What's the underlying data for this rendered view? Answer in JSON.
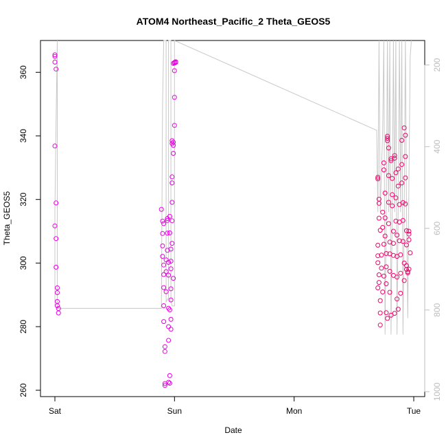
{
  "chart_data": {
    "type": "scatter",
    "title": "ATOM4 Northeast_Pacific_2 Theta_GEOS5",
    "xlabel": "Date",
    "ylabel": "Theta_GEOS5",
    "x_ticks": [
      "Sat",
      "Sun",
      "Mon",
      "Tue"
    ],
    "x_range": [
      0,
      3.06
    ],
    "y_ticks": [
      "260",
      "280",
      "300",
      "320",
      "340",
      "360"
    ],
    "y_range": [
      258,
      370
    ],
    "y2_ticks": [
      "200",
      "400",
      "600",
      "800",
      "1000"
    ],
    "y2_range": [
      1012,
      140
    ],
    "y2_reversed": true,
    "grid": false,
    "colors": {
      "points_early": "#e800e0",
      "points_late": "#f0006a",
      "line": "#c8c8c8",
      "axis": "#000000",
      "right_axis": "#bdbdbd"
    },
    "series": [
      {
        "type": "scatter",
        "values": [
          [
            0.0,
            365.5
          ],
          [
            0.0,
            365.0
          ],
          [
            0.0,
            363.2
          ],
          [
            0.01,
            361.0
          ],
          [
            0.0,
            336.8
          ],
          [
            0.01,
            318.9
          ],
          [
            0.0,
            311.7
          ],
          [
            0.01,
            307.7
          ],
          [
            0.01,
            298.7
          ],
          [
            0.02,
            292.2
          ],
          [
            0.02,
            290.7
          ],
          [
            0.02,
            287.9
          ],
          [
            0.02,
            286.6
          ],
          [
            0.03,
            285.7
          ],
          [
            0.03,
            284.3
          ],
          [
            0.89,
            316.9
          ],
          [
            0.9,
            313.2
          ],
          [
            0.91,
            312.4
          ],
          [
            0.9,
            309.3
          ],
          [
            0.9,
            305.4
          ],
          [
            0.9,
            302.1
          ],
          [
            0.91,
            299.4
          ],
          [
            0.91,
            296.4
          ],
          [
            0.91,
            292.3
          ],
          [
            0.91,
            286.6
          ],
          [
            0.91,
            281.6
          ],
          [
            0.92,
            273.7
          ],
          [
            0.92,
            272.2
          ],
          [
            0.92,
            262.1
          ],
          [
            0.92,
            261.5
          ],
          [
            0.93,
            301.0
          ],
          [
            0.93,
            297.3
          ],
          [
            0.93,
            291.0
          ],
          [
            0.94,
            314.0
          ],
          [
            0.94,
            313.4
          ],
          [
            0.94,
            309.4
          ],
          [
            0.94,
            304.0
          ],
          [
            0.95,
            300.2
          ],
          [
            0.95,
            296.2
          ],
          [
            0.95,
            285.8
          ],
          [
            0.95,
            280.0
          ],
          [
            0.95,
            275.7
          ],
          [
            0.96,
            285.3
          ],
          [
            0.95,
            262.5
          ],
          [
            0.96,
            264.6
          ],
          [
            0.96,
            262.2
          ],
          [
            0.96,
            314.7
          ],
          [
            0.96,
            309.5
          ],
          [
            0.97,
            304.4
          ],
          [
            0.97,
            300.6
          ],
          [
            0.97,
            298.2
          ],
          [
            0.97,
            291.9
          ],
          [
            0.97,
            288.4
          ],
          [
            0.97,
            282.3
          ],
          [
            0.97,
            279.2
          ],
          [
            0.98,
            327.1
          ],
          [
            0.98,
            325.2
          ],
          [
            0.98,
            319.1
          ],
          [
            0.98,
            313.3
          ],
          [
            0.98,
            306.2
          ],
          [
            0.99,
            295.2
          ],
          [
            0.98,
            338.5
          ],
          [
            0.98,
            337.6
          ],
          [
            0.99,
            337.0
          ],
          [
            0.99,
            338.0
          ],
          [
            0.99,
            334.5
          ],
          [
            1.0,
            343.3
          ],
          [
            1.0,
            352.1
          ],
          [
            1.0,
            360.5
          ],
          [
            0.99,
            362.8
          ],
          [
            1.0,
            362.9
          ],
          [
            1.0,
            363.1
          ],
          [
            1.01,
            363.1
          ],
          [
            1.01,
            363.3
          ]
        ]
      },
      {
        "type": "scatter",
        "values": [
          [
            2.7,
            327.0
          ],
          [
            2.7,
            326.5
          ],
          [
            2.71,
            320.1
          ],
          [
            2.71,
            318.8
          ],
          [
            2.71,
            314.1
          ],
          [
            2.72,
            310.3
          ],
          [
            2.7,
            305.6
          ],
          [
            2.7,
            302.3
          ],
          [
            2.7,
            300.1
          ],
          [
            2.71,
            296.3
          ],
          [
            2.71,
            293.9
          ],
          [
            2.7,
            292.2
          ],
          [
            2.72,
            288.2
          ],
          [
            2.72,
            284.3
          ],
          [
            2.72,
            280.5
          ],
          [
            2.73,
            302.5
          ],
          [
            2.73,
            298.4
          ],
          [
            2.74,
            290.9
          ],
          [
            2.74,
            311.2
          ],
          [
            2.74,
            316.0
          ],
          [
            2.75,
            305.9
          ],
          [
            2.75,
            295.9
          ],
          [
            2.75,
            331.5
          ],
          [
            2.75,
            329.3
          ],
          [
            2.76,
            322.0
          ],
          [
            2.76,
            314.2
          ],
          [
            2.76,
            308.5
          ],
          [
            2.77,
            303.0
          ],
          [
            2.77,
            298.8
          ],
          [
            2.77,
            293.5
          ],
          [
            2.77,
            284.4
          ],
          [
            2.78,
            282.6
          ],
          [
            2.78,
            339.9
          ],
          [
            2.78,
            339.2
          ],
          [
            2.78,
            338.5
          ],
          [
            2.79,
            336.2
          ],
          [
            2.79,
            327.5
          ],
          [
            2.79,
            319.1
          ],
          [
            2.79,
            312.4
          ],
          [
            2.8,
            306.6
          ],
          [
            2.8,
            302.9
          ],
          [
            2.8,
            297.4
          ],
          [
            2.8,
            290.8
          ],
          [
            2.81,
            283.6
          ],
          [
            2.81,
            332.8
          ],
          [
            2.81,
            332.2
          ],
          [
            2.82,
            326.6
          ],
          [
            2.82,
            321.5
          ],
          [
            2.82,
            318.0
          ],
          [
            2.83,
            310.0
          ],
          [
            2.83,
            306.2
          ],
          [
            2.83,
            302.4
          ],
          [
            2.83,
            296.1
          ],
          [
            2.84,
            284.2
          ],
          [
            2.84,
            333.8
          ],
          [
            2.84,
            333.0
          ],
          [
            2.85,
            328.4
          ],
          [
            2.85,
            320.5
          ],
          [
            2.85,
            313.2
          ],
          [
            2.86,
            308.8
          ],
          [
            2.86,
            302.1
          ],
          [
            2.86,
            295.6
          ],
          [
            2.86,
            288.7
          ],
          [
            2.87,
            285.5
          ],
          [
            2.87,
            329.6
          ],
          [
            2.87,
            324.2
          ],
          [
            2.88,
            318.4
          ],
          [
            2.88,
            312.9
          ],
          [
            2.88,
            307.0
          ],
          [
            2.89,
            302.6
          ],
          [
            2.89,
            296.8
          ],
          [
            2.89,
            290.5
          ],
          [
            2.9,
            338.6
          ],
          [
            2.9,
            331.0
          ],
          [
            2.9,
            325.2
          ],
          [
            2.91,
            319.0
          ],
          [
            2.91,
            313.4
          ],
          [
            2.91,
            306.8
          ],
          [
            2.92,
            300.0
          ],
          [
            2.92,
            294.5
          ],
          [
            2.92,
            342.5
          ],
          [
            2.93,
            340.2
          ],
          [
            2.93,
            333.5
          ],
          [
            2.93,
            326.8
          ],
          [
            2.93,
            318.6
          ],
          [
            2.94,
            310.2
          ],
          [
            2.94,
            305.7
          ],
          [
            2.94,
            299.2
          ],
          [
            2.94,
            298.0
          ],
          [
            2.95,
            297.3
          ],
          [
            2.95,
            296.9
          ],
          [
            2.96,
            310.0
          ],
          [
            2.96,
            309.1
          ],
          [
            2.96,
            307.3
          ],
          [
            2.96,
            298.1
          ],
          [
            2.97,
            303.2
          ]
        ]
      }
    ],
    "profile_line": {
      "type": "line",
      "axis": "y2",
      "values": [
        [
          0.0,
          790
        ],
        [
          0.0,
          560
        ],
        [
          0.01,
          340
        ],
        [
          0.02,
          140
        ],
        [
          0.02,
          796
        ],
        [
          0.89,
          796
        ],
        [
          0.9,
          300
        ],
        [
          0.91,
          140
        ],
        [
          0.93,
          140
        ],
        [
          0.93,
          780
        ],
        [
          0.95,
          770
        ],
        [
          0.95,
          140
        ],
        [
          0.97,
          140
        ],
        [
          0.97,
          780
        ],
        [
          0.98,
          790
        ],
        [
          1.0,
          790
        ],
        [
          1.0,
          140
        ],
        [
          2.69,
          360
        ],
        [
          2.7,
          560
        ],
        [
          2.71,
          140
        ],
        [
          2.72,
          560
        ],
        [
          2.74,
          360
        ],
        [
          2.75,
          140
        ],
        [
          2.76,
          860
        ],
        [
          2.77,
          560
        ],
        [
          2.78,
          140
        ],
        [
          2.79,
          560
        ],
        [
          2.8,
          140
        ],
        [
          2.81,
          860
        ],
        [
          2.82,
          560
        ],
        [
          2.83,
          140
        ],
        [
          2.84,
          560
        ],
        [
          2.85,
          140
        ],
        [
          2.86,
          860
        ],
        [
          2.87,
          560
        ],
        [
          2.88,
          140
        ],
        [
          2.89,
          560
        ],
        [
          2.9,
          140
        ],
        [
          2.91,
          860
        ],
        [
          2.92,
          560
        ],
        [
          2.93,
          140
        ],
        [
          2.94,
          560
        ],
        [
          2.95,
          820
        ],
        [
          2.96,
          480
        ],
        [
          2.97,
          180
        ],
        [
          2.98,
          140
        ]
      ]
    }
  }
}
